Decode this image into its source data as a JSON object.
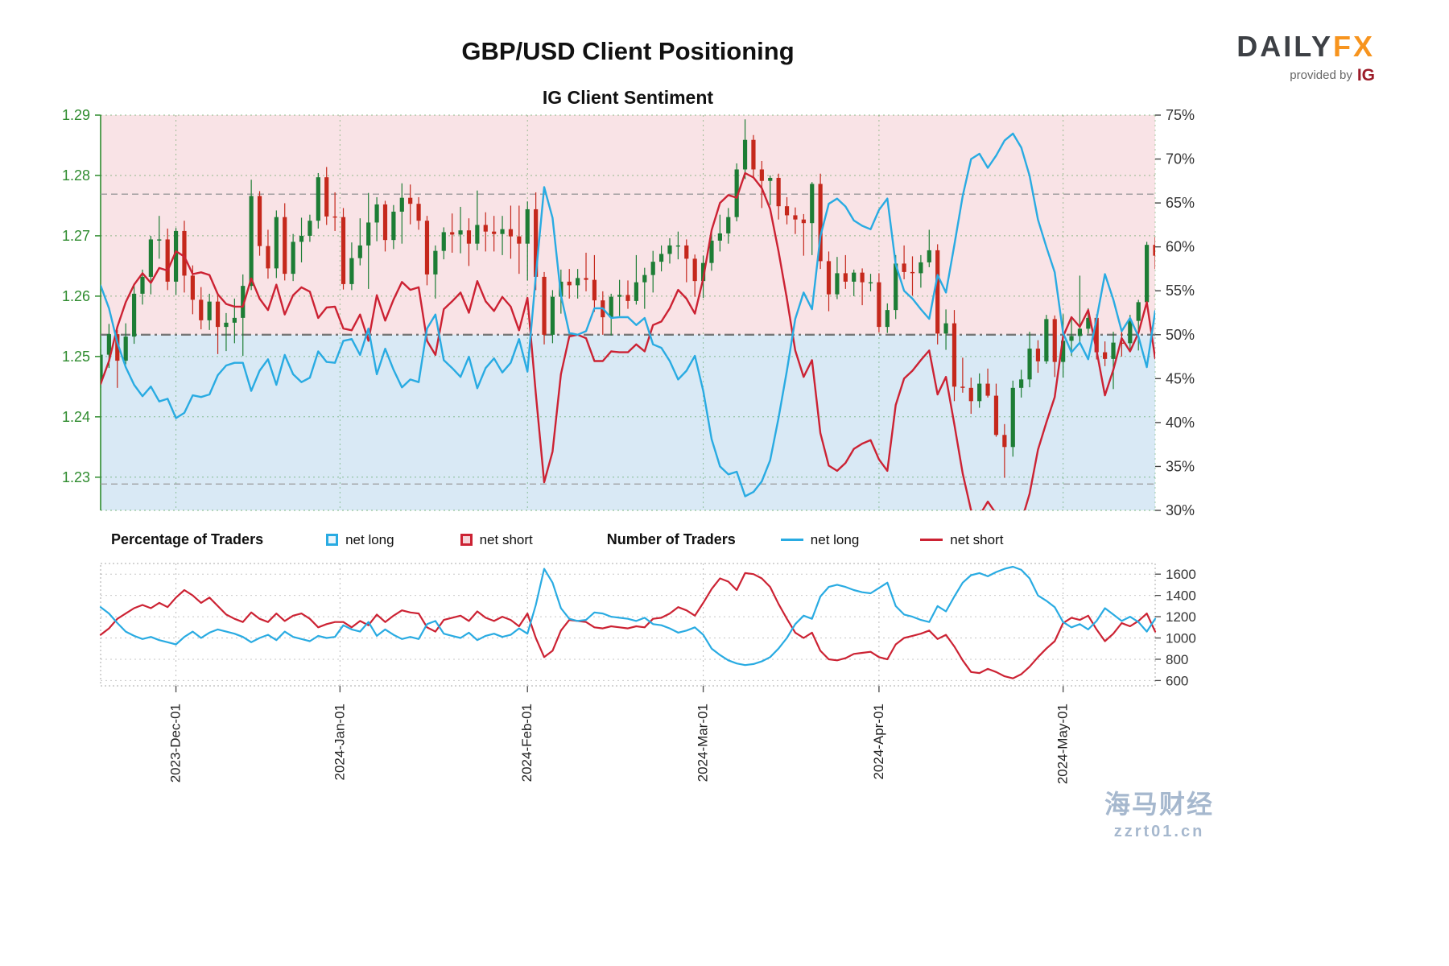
{
  "header": {
    "title": "GBP/USD Client Positioning",
    "subtitle": "IG Client Sentiment",
    "logo": {
      "daily": "DAILY",
      "fx": "FX",
      "provided_by": "provided by",
      "ig": "IG"
    }
  },
  "legend": {
    "pct_label": "Percentage of Traders",
    "pct_net_long": "net long",
    "pct_net_short": "net short",
    "num_label": "Number of Traders",
    "num_net_long": "net long",
    "num_net_short": "net short"
  },
  "watermark": {
    "line1": "海马财经",
    "line2": "zzrt01.cn"
  },
  "colors": {
    "net_long": "#29abe2",
    "net_short": "#cc2233",
    "candle_up": "#1d7d35",
    "candle_down": "#c5281c",
    "price_axis": "#2e8b2e",
    "bg_upper": "#f9e3e6",
    "bg_lower": "#d9e9f5",
    "axis_text": "#333333"
  },
  "chart_data": {
    "type": "mixed",
    "title": "GBP/USD Client Positioning",
    "subtitle": "IG Client Sentiment",
    "panels": [
      "price-candlestick with sentiment % lines",
      "number of traders lines"
    ],
    "dates": [
      "2023-11-20",
      "2023-11-21",
      "2023-11-22",
      "2023-11-23",
      "2023-11-24",
      "2023-11-27",
      "2023-11-28",
      "2023-11-29",
      "2023-11-30",
      "2023-12-01",
      "2023-12-04",
      "2023-12-05",
      "2023-12-06",
      "2023-12-07",
      "2023-12-08",
      "2023-12-11",
      "2023-12-12",
      "2023-12-13",
      "2023-12-14",
      "2023-12-15",
      "2023-12-18",
      "2023-12-19",
      "2023-12-20",
      "2023-12-21",
      "2023-12-22",
      "2023-12-26",
      "2023-12-27",
      "2023-12-28",
      "2023-12-29",
      "2024-01-02",
      "2024-01-03",
      "2024-01-04",
      "2024-01-05",
      "2024-01-08",
      "2024-01-09",
      "2024-01-10",
      "2024-01-11",
      "2024-01-12",
      "2024-01-15",
      "2024-01-16",
      "2024-01-17",
      "2024-01-18",
      "2024-01-19",
      "2024-01-22",
      "2024-01-23",
      "2024-01-24",
      "2024-01-25",
      "2024-01-26",
      "2024-01-29",
      "2024-01-30",
      "2024-01-31",
      "2024-02-01",
      "2024-02-02",
      "2024-02-05",
      "2024-02-06",
      "2024-02-07",
      "2024-02-08",
      "2024-02-09",
      "2024-02-12",
      "2024-02-13",
      "2024-02-14",
      "2024-02-15",
      "2024-02-16",
      "2024-02-19",
      "2024-02-20",
      "2024-02-21",
      "2024-02-22",
      "2024-02-23",
      "2024-02-26",
      "2024-02-27",
      "2024-02-28",
      "2024-02-29",
      "2024-03-01",
      "2024-03-04",
      "2024-03-05",
      "2024-03-06",
      "2024-03-07",
      "2024-03-08",
      "2024-03-11",
      "2024-03-12",
      "2024-03-13",
      "2024-03-14",
      "2024-03-15",
      "2024-03-18",
      "2024-03-19",
      "2024-03-20",
      "2024-03-21",
      "2024-03-22",
      "2024-03-25",
      "2024-03-26",
      "2024-03-27",
      "2024-03-28",
      "2024-03-29",
      "2024-04-01",
      "2024-04-02",
      "2024-04-03",
      "2024-04-04",
      "2024-04-05",
      "2024-04-08",
      "2024-04-09",
      "2024-04-10",
      "2024-04-11",
      "2024-04-12",
      "2024-04-15",
      "2024-04-16",
      "2024-04-17",
      "2024-04-18",
      "2024-04-19",
      "2024-04-22",
      "2024-04-23",
      "2024-04-24",
      "2024-04-25",
      "2024-04-26",
      "2024-04-29",
      "2024-04-30",
      "2024-05-01",
      "2024-05-02",
      "2024-05-03",
      "2024-05-06",
      "2024-05-07",
      "2024-05-08",
      "2024-05-09",
      "2024-05-10",
      "2024-05-13",
      "2024-05-14",
      "2024-05-15",
      "2024-05-16"
    ],
    "months": [
      {
        "label": "2023-Dec-01",
        "index": 9
      },
      {
        "label": "2024-Jan-01",
        "index": 28.6
      },
      {
        "label": "2024-Feb-01",
        "index": 51
      },
      {
        "label": "2024-Mar-01",
        "index": 72
      },
      {
        "label": "2024-Apr-01",
        "index": 93
      },
      {
        "label": "2024-May-01",
        "index": 115
      }
    ],
    "price_axis": {
      "side": "left",
      "min": 1.2245,
      "max": 1.29,
      "ticks": [
        1.23,
        1.24,
        1.25,
        1.26,
        1.27,
        1.28,
        1.29
      ]
    },
    "pct_axis": {
      "side": "right",
      "min": 30,
      "max": 75,
      "ticks": [
        30,
        35,
        40,
        45,
        50,
        55,
        60,
        65,
        70,
        75
      ],
      "reference_lines": [
        33,
        50,
        66
      ]
    },
    "traders_axis": {
      "side": "right",
      "min": 550,
      "max": 1700,
      "ticks": [
        600,
        800,
        1000,
        1200,
        1400,
        1600
      ]
    },
    "price_candles": {
      "open": [
        1.2462,
        1.2503,
        1.2537,
        1.2493,
        1.2533,
        1.2604,
        1.2632,
        1.2694,
        1.2694,
        1.2624,
        1.2708,
        1.2634,
        1.2594,
        1.256,
        1.2591,
        1.2549,
        1.2556,
        1.2564,
        1.2617,
        1.2766,
        1.2683,
        1.2646,
        1.2731,
        1.2637,
        1.269,
        1.27,
        1.2725,
        1.2797,
        1.2732,
        1.2731,
        1.262,
        1.2663,
        1.2684,
        1.2722,
        1.2752,
        1.2693,
        1.274,
        1.2763,
        1.2753,
        1.2725,
        1.2636,
        1.2675,
        1.2706,
        1.2702,
        1.2709,
        1.2687,
        1.2718,
        1.2707,
        1.2703,
        1.2711,
        1.2699,
        1.2687,
        1.2744,
        1.2632,
        1.2536,
        1.2599,
        1.2624,
        1.2618,
        1.263,
        1.2627,
        1.2593,
        1.2565,
        1.2599,
        1.2602,
        1.2592,
        1.2623,
        1.2635,
        1.2657,
        1.267,
        1.2684,
        1.2684,
        1.2662,
        1.2625,
        1.2655,
        1.2692,
        1.2704,
        1.2731,
        1.281,
        1.2859,
        1.281,
        1.2791,
        1.2796,
        1.2749,
        1.2734,
        1.2727,
        1.2721,
        1.2786,
        1.2658,
        1.2603,
        1.2638,
        1.2624,
        1.2639,
        1.2623,
        1.2623,
        1.2549,
        1.2577,
        1.2654,
        1.264,
        1.2638,
        1.2656,
        1.2676,
        1.2538,
        1.2555,
        1.245,
        1.2448,
        1.2426,
        1.2455,
        1.2435,
        1.237,
        1.235,
        1.2448,
        1.2462,
        1.2513,
        1.2492,
        1.2562,
        1.2491,
        1.2526,
        1.2534,
        1.2546,
        1.2564,
        1.2507,
        1.2496,
        1.2523,
        1.2522,
        1.2559,
        1.259,
        1.2685
      ],
      "high": [
        1.2512,
        1.2554,
        1.2544,
        1.2555,
        1.2621,
        1.2644,
        1.27,
        1.2733,
        1.2712,
        1.2713,
        1.2725,
        1.2651,
        1.2615,
        1.2604,
        1.2602,
        1.2572,
        1.2596,
        1.2636,
        1.2793,
        1.2774,
        1.271,
        1.2742,
        1.2754,
        1.2703,
        1.273,
        1.2735,
        1.2804,
        1.2814,
        1.2772,
        1.2746,
        1.2689,
        1.2729,
        1.2771,
        1.2764,
        1.2758,
        1.2751,
        1.2787,
        1.2785,
        1.2764,
        1.2733,
        1.2684,
        1.2714,
        1.2737,
        1.2748,
        1.2729,
        1.2775,
        1.2739,
        1.2733,
        1.2733,
        1.275,
        1.275,
        1.2757,
        1.2772,
        1.264,
        1.261,
        1.2644,
        1.2645,
        1.2645,
        1.2672,
        1.2668,
        1.2608,
        1.2604,
        1.2627,
        1.2626,
        1.2668,
        1.2647,
        1.2675,
        1.2684,
        1.2696,
        1.2707,
        1.2694,
        1.2669,
        1.2667,
        1.2707,
        1.2735,
        1.2746,
        1.282,
        1.2893,
        1.2867,
        1.2824,
        1.28,
        1.2803,
        1.2764,
        1.2747,
        1.2736,
        1.2789,
        1.2803,
        1.2674,
        1.2665,
        1.2668,
        1.2644,
        1.2646,
        1.2637,
        1.2638,
        1.2588,
        1.2668,
        1.2684,
        1.2666,
        1.2668,
        1.271,
        1.2686,
        1.2578,
        1.2577,
        1.2498,
        1.2465,
        1.2472,
        1.248,
        1.2455,
        1.2388,
        1.246,
        1.2478,
        1.2541,
        1.2527,
        1.2569,
        1.2568,
        1.257,
        1.2563,
        1.2634,
        1.258,
        1.257,
        1.2525,
        1.2541,
        1.2546,
        1.2569,
        1.2594,
        1.269,
        1.2698
      ],
      "low": [
        1.2448,
        1.2481,
        1.2448,
        1.2487,
        1.2521,
        1.2586,
        1.2603,
        1.2662,
        1.261,
        1.2602,
        1.2606,
        1.257,
        1.2545,
        1.2544,
        1.2504,
        1.2509,
        1.2522,
        1.2501,
        1.261,
        1.2667,
        1.2629,
        1.263,
        1.2626,
        1.2625,
        1.2656,
        1.269,
        1.2712,
        1.2718,
        1.2708,
        1.2611,
        1.261,
        1.2651,
        1.2612,
        1.2691,
        1.2674,
        1.2678,
        1.2687,
        1.2719,
        1.271,
        1.2618,
        1.2596,
        1.2661,
        1.2672,
        1.2671,
        1.265,
        1.2676,
        1.2674,
        1.2674,
        1.2668,
        1.2662,
        1.2637,
        1.2626,
        1.261,
        1.252,
        1.2522,
        1.2571,
        1.2596,
        1.2596,
        1.2608,
        1.2574,
        1.2536,
        1.2535,
        1.2567,
        1.2579,
        1.2586,
        1.2579,
        1.2606,
        1.2641,
        1.2654,
        1.2661,
        1.2623,
        1.2599,
        1.2597,
        1.2642,
        1.2674,
        1.2687,
        1.2724,
        1.2794,
        1.2795,
        1.2746,
        1.2751,
        1.2727,
        1.2719,
        1.2703,
        1.2667,
        1.2668,
        1.2645,
        1.2575,
        1.2595,
        1.2612,
        1.26,
        1.2585,
        1.2608,
        1.254,
        1.2539,
        1.2562,
        1.2628,
        1.2601,
        1.2614,
        1.2648,
        1.252,
        1.2511,
        1.2426,
        1.244,
        1.2405,
        1.2415,
        1.2432,
        1.2367,
        1.2299,
        1.2334,
        1.2432,
        1.2449,
        1.2473,
        1.2488,
        1.2466,
        1.2465,
        1.2501,
        1.252,
        1.2538,
        1.2495,
        1.2484,
        1.2446,
        1.25,
        1.2509,
        1.251,
        1.2583,
        1.2645
      ],
      "close": [
        1.2503,
        1.2537,
        1.2493,
        1.2533,
        1.2604,
        1.2632,
        1.2694,
        1.2694,
        1.2624,
        1.2708,
        1.2634,
        1.2594,
        1.256,
        1.2591,
        1.2549,
        1.2556,
        1.2564,
        1.2617,
        1.2766,
        1.2683,
        1.2646,
        1.2731,
        1.2637,
        1.269,
        1.27,
        1.2725,
        1.2797,
        1.2732,
        1.2731,
        1.262,
        1.2663,
        1.2684,
        1.2722,
        1.2752,
        1.2693,
        1.274,
        1.2763,
        1.2753,
        1.2725,
        1.2636,
        1.2675,
        1.2706,
        1.2702,
        1.2709,
        1.2687,
        1.2718,
        1.2707,
        1.2703,
        1.2711,
        1.2699,
        1.2687,
        1.2744,
        1.2632,
        1.2536,
        1.2599,
        1.2624,
        1.2618,
        1.263,
        1.2627,
        1.2593,
        1.2565,
        1.2599,
        1.2602,
        1.2592,
        1.2623,
        1.2635,
        1.2657,
        1.267,
        1.2684,
        1.2684,
        1.2662,
        1.2625,
        1.2655,
        1.2692,
        1.2704,
        1.2731,
        1.281,
        1.2859,
        1.281,
        1.2791,
        1.2796,
        1.2749,
        1.2734,
        1.2727,
        1.2721,
        1.2786,
        1.2658,
        1.2603,
        1.2638,
        1.2624,
        1.2639,
        1.2623,
        1.2623,
        1.2549,
        1.2577,
        1.2654,
        1.264,
        1.2638,
        1.2656,
        1.2676,
        1.2538,
        1.2555,
        1.245,
        1.2448,
        1.2426,
        1.2455,
        1.2435,
        1.237,
        1.235,
        1.2448,
        1.2462,
        1.2513,
        1.2492,
        1.2562,
        1.2491,
        1.2526,
        1.2534,
        1.2546,
        1.2564,
        1.2507,
        1.2496,
        1.2523,
        1.2522,
        1.2559,
        1.259,
        1.2685,
        1.2667
      ]
    },
    "net_long_pct": [
      55.6,
      53.0,
      49.1,
      46.3,
      44.3,
      43.0,
      44.1,
      42.4,
      42.7,
      40.5,
      41.1,
      43.1,
      42.9,
      43.2,
      45.4,
      46.5,
      46.8,
      46.8,
      43.6,
      45.9,
      47.2,
      44.3,
      47.7,
      45.5,
      44.6,
      45.1,
      48.1,
      46.9,
      46.8,
      49.3,
      49.5,
      47.7,
      50.7,
      45.5,
      48.4,
      46.0,
      44.0,
      44.9,
      44.6,
      50.7,
      52.3,
      47.1,
      46.2,
      45.2,
      47.5,
      43.9,
      46.2,
      47.3,
      45.7,
      46.8,
      49.5,
      45.8,
      56.7,
      66.8,
      63.3,
      54.5,
      50.2,
      50.0,
      50.4,
      53.0,
      53.0,
      51.9,
      52.0,
      52.0,
      51.1,
      51.9,
      48.9,
      48.5,
      47.0,
      44.9,
      45.9,
      47.6,
      43.6,
      38.1,
      35.0,
      34.1,
      34.4,
      31.6,
      32.1,
      33.3,
      35.7,
      40.5,
      45.9,
      51.8,
      54.8,
      52.9,
      61.2,
      64.9,
      65.5,
      64.6,
      63.0,
      62.4,
      62.0,
      64.2,
      65.5,
      58.0,
      55.0,
      54.1,
      52.9,
      51.8,
      56.8,
      54.8,
      60.2,
      65.8,
      70.0,
      70.6,
      69.0,
      70.4,
      72.1,
      72.9,
      71.3,
      68.1,
      63.1,
      60.0,
      57.1,
      50.2,
      48.0,
      49.1,
      47.2,
      51.8,
      56.9,
      54.0,
      50.4,
      51.9,
      49.8,
      46.3,
      52.7
    ],
    "net_short_pct": [
      44.4,
      47.0,
      50.9,
      53.7,
      55.7,
      57.0,
      55.9,
      57.6,
      57.3,
      59.5,
      58.9,
      56.9,
      57.1,
      56.8,
      54.6,
      53.5,
      53.2,
      53.2,
      56.4,
      54.1,
      52.8,
      55.7,
      52.3,
      54.5,
      55.4,
      54.9,
      51.9,
      53.1,
      53.2,
      50.7,
      50.5,
      52.3,
      49.3,
      54.5,
      51.6,
      54.0,
      56.0,
      55.1,
      55.4,
      49.3,
      47.7,
      52.9,
      53.8,
      54.8,
      52.5,
      56.1,
      53.8,
      52.7,
      54.3,
      53.2,
      50.5,
      54.2,
      43.3,
      33.2,
      36.7,
      45.5,
      49.8,
      50.0,
      49.6,
      47.0,
      47.0,
      48.1,
      48.0,
      48.0,
      48.9,
      48.1,
      51.1,
      51.5,
      53.0,
      55.1,
      54.1,
      52.4,
      56.4,
      61.9,
      65.0,
      65.9,
      65.6,
      68.4,
      67.9,
      66.7,
      64.3,
      59.5,
      54.1,
      48.2,
      45.2,
      47.1,
      38.8,
      35.1,
      34.5,
      35.4,
      37.0,
      37.6,
      38.0,
      35.8,
      34.5,
      42.0,
      45.0,
      45.9,
      47.1,
      48.2,
      43.2,
      45.2,
      39.8,
      34.2,
      30.0,
      29.4,
      31.0,
      29.6,
      27.9,
      27.1,
      28.7,
      31.9,
      36.9,
      40.0,
      42.9,
      49.8,
      52.0,
      50.9,
      52.8,
      48.2,
      43.1,
      46.0,
      49.6,
      48.1,
      50.2,
      53.7,
      47.3
    ],
    "net_long_traders": [
      1290,
      1230,
      1140,
      1060,
      1020,
      990,
      1010,
      980,
      960,
      940,
      1010,
      1060,
      1000,
      1050,
      1080,
      1060,
      1040,
      1010,
      960,
      1000,
      1030,
      980,
      1060,
      1010,
      990,
      970,
      1020,
      1000,
      1010,
      1120,
      1080,
      1060,
      1150,
      1020,
      1080,
      1030,
      990,
      1010,
      990,
      1130,
      1160,
      1040,
      1020,
      1000,
      1050,
      980,
      1020,
      1040,
      1010,
      1030,
      1090,
      1040,
      1310,
      1650,
      1520,
      1280,
      1180,
      1160,
      1170,
      1240,
      1230,
      1200,
      1190,
      1180,
      1160,
      1190,
      1130,
      1120,
      1090,
      1050,
      1070,
      1100,
      1030,
      900,
      840,
      790,
      760,
      745,
      755,
      780,
      820,
      900,
      1000,
      1130,
      1210,
      1180,
      1390,
      1480,
      1500,
      1480,
      1450,
      1430,
      1420,
      1470,
      1520,
      1300,
      1220,
      1200,
      1170,
      1150,
      1300,
      1250,
      1390,
      1520,
      1590,
      1610,
      1580,
      1620,
      1650,
      1670,
      1640,
      1560,
      1400,
      1350,
      1290,
      1150,
      1100,
      1130,
      1080,
      1160,
      1280,
      1220,
      1160,
      1200,
      1150,
      1060,
      1180
    ],
    "net_short_traders": [
      1030,
      1090,
      1180,
      1230,
      1280,
      1310,
      1280,
      1330,
      1290,
      1380,
      1450,
      1400,
      1330,
      1380,
      1300,
      1220,
      1180,
      1150,
      1240,
      1180,
      1150,
      1230,
      1160,
      1210,
      1230,
      1180,
      1100,
      1130,
      1150,
      1150,
      1100,
      1160,
      1120,
      1220,
      1150,
      1210,
      1260,
      1240,
      1230,
      1100,
      1060,
      1170,
      1190,
      1210,
      1160,
      1250,
      1190,
      1160,
      1200,
      1170,
      1110,
      1230,
      1000,
      820,
      880,
      1070,
      1170,
      1160,
      1150,
      1100,
      1090,
      1110,
      1100,
      1090,
      1110,
      1100,
      1180,
      1190,
      1230,
      1290,
      1260,
      1210,
      1330,
      1460,
      1560,
      1530,
      1450,
      1610,
      1600,
      1560,
      1480,
      1320,
      1180,
      1050,
      1000,
      1050,
      880,
      800,
      790,
      810,
      850,
      860,
      870,
      820,
      800,
      940,
      1000,
      1020,
      1040,
      1070,
      990,
      1030,
      920,
      790,
      680,
      670,
      710,
      680,
      640,
      620,
      660,
      730,
      820,
      900,
      970,
      1140,
      1190,
      1170,
      1210,
      1080,
      970,
      1040,
      1140,
      1110,
      1160,
      1230,
      1060
    ]
  }
}
